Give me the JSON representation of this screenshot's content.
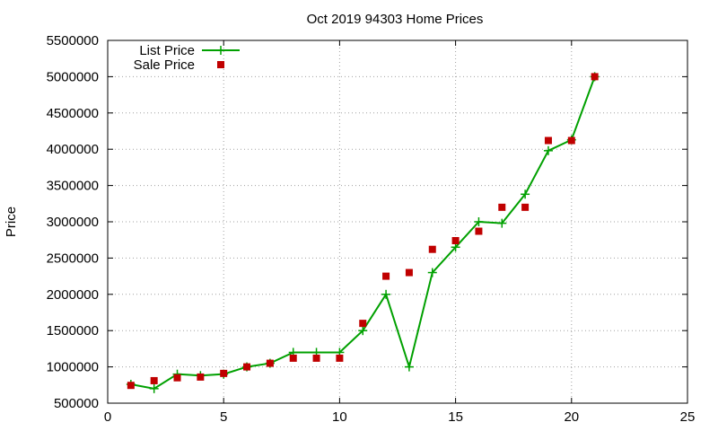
{
  "chart_data": {
    "type": "line",
    "title": "Oct 2019 94303 Home Prices",
    "xlabel": "",
    "ylabel": "Price",
    "xlim": [
      0,
      25
    ],
    "ylim": [
      500000,
      5500000
    ],
    "x_ticks": [
      0,
      5,
      10,
      15,
      20,
      25
    ],
    "y_ticks": [
      500000,
      1000000,
      1500000,
      2000000,
      2500000,
      3000000,
      3500000,
      4000000,
      4500000,
      5000000,
      5500000
    ],
    "grid": true,
    "legend_position": "top-left",
    "series": [
      {
        "name": "List Price",
        "style": "linespoints",
        "marker": "plus",
        "color": "#00a000",
        "x": [
          1,
          2,
          3,
          4,
          5,
          6,
          7,
          8,
          9,
          10,
          11,
          12,
          13,
          14,
          15,
          16,
          17,
          18,
          19,
          20,
          21
        ],
        "y": [
          760000,
          700000,
          900000,
          880000,
          900000,
          1000000,
          1050000,
          1200000,
          1200000,
          1200000,
          1500000,
          2000000,
          1000000,
          2300000,
          2650000,
          3000000,
          2980000,
          3380000,
          3980000,
          4130000,
          5000000
        ]
      },
      {
        "name": "Sale Price",
        "style": "points",
        "marker": "square",
        "color": "#c00000",
        "x": [
          1,
          2,
          3,
          4,
          5,
          6,
          7,
          8,
          9,
          10,
          11,
          12,
          13,
          14,
          15,
          16,
          17,
          18,
          19,
          20,
          21
        ],
        "y": [
          745000,
          810000,
          850000,
          860000,
          910000,
          1000000,
          1050000,
          1120000,
          1120000,
          1120000,
          1600000,
          2250000,
          2300000,
          2620000,
          2740000,
          2870000,
          3200000,
          3200000,
          4120000,
          4120000,
          5000000
        ]
      }
    ]
  }
}
